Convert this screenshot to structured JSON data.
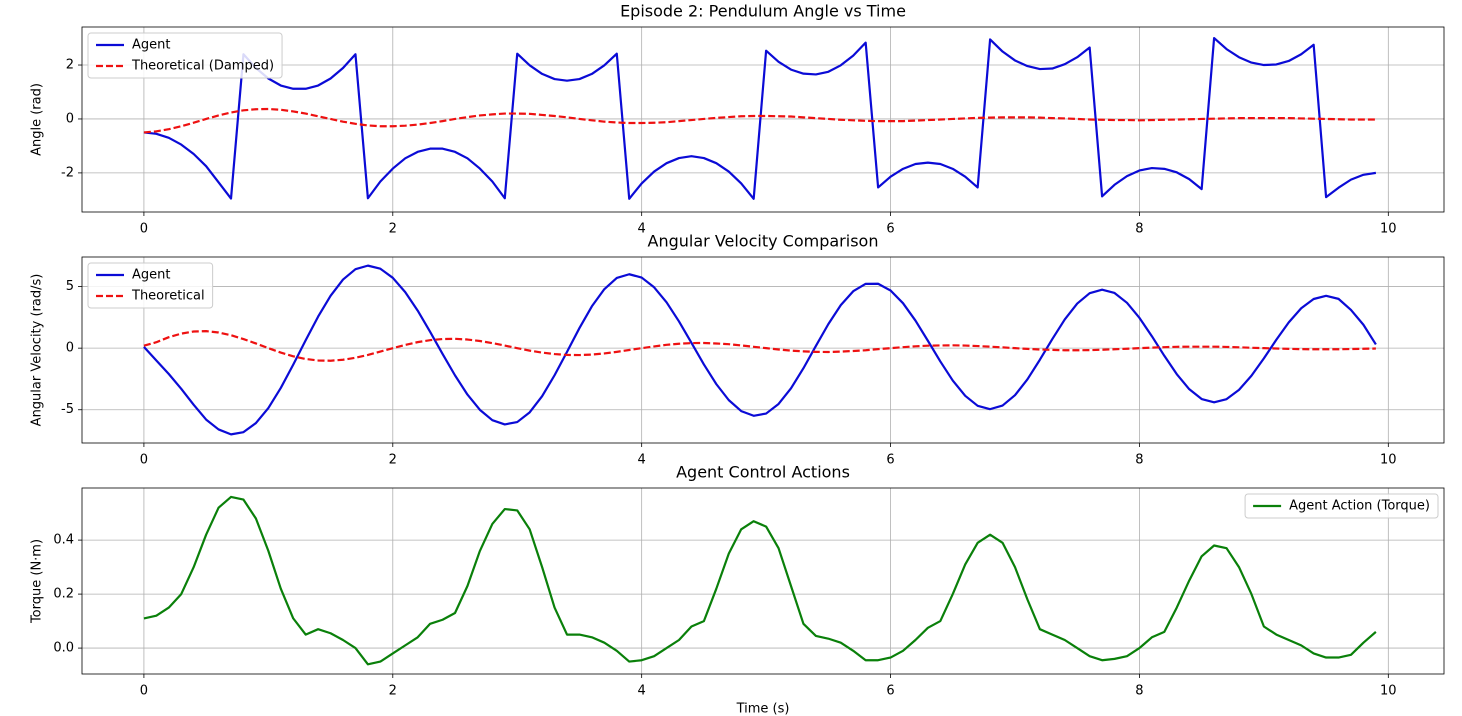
{
  "chart_data": [
    {
      "type": "line",
      "title": "Episode 2: Pendulum Angle vs Time",
      "y_label": "Angle (rad)",
      "x": [
        0,
        0.1,
        0.2,
        0.3,
        0.4,
        0.5,
        0.6,
        0.7,
        0.8,
        0.9,
        1,
        1.1,
        1.2,
        1.3,
        1.4,
        1.5,
        1.6,
        1.7,
        1.8,
        1.9,
        2,
        2.1,
        2.2,
        2.3,
        2.4,
        2.5,
        2.6,
        2.7,
        2.8,
        2.9,
        3,
        3.1,
        3.2,
        3.3,
        3.4,
        3.5,
        3.6,
        3.7,
        3.8,
        3.9,
        4,
        4.1,
        4.2,
        4.3,
        4.4,
        4.5,
        4.6,
        4.7,
        4.8,
        4.9,
        5,
        5.1,
        5.2,
        5.3,
        5.4,
        5.5,
        5.6,
        5.7,
        5.8,
        5.9,
        6,
        6.1,
        6.2,
        6.3,
        6.4,
        6.5,
        6.6,
        6.7,
        6.8,
        6.9,
        7,
        7.1,
        7.2,
        7.3,
        7.4,
        7.5,
        7.6,
        7.7,
        7.8,
        7.9,
        8,
        8.1,
        8.2,
        8.3,
        8.4,
        8.5,
        8.6,
        8.7,
        8.8,
        8.9,
        9,
        9.1,
        9.2,
        9.3,
        9.4,
        9.5,
        9.6,
        9.7,
        9.8,
        9.9
      ],
      "series": [
        {
          "name": "Agent",
          "color": "#0b0bd6",
          "linestyle": "solid",
          "values": [
            -0.5,
            -0.55,
            -0.7,
            -0.95,
            -1.3,
            -1.75,
            -2.35,
            -2.95,
            2.4,
            1.89,
            1.5,
            1.24,
            1.12,
            1.12,
            1.24,
            1.5,
            1.89,
            2.4,
            -2.94,
            -2.32,
            -1.84,
            -1.46,
            -1.22,
            -1.1,
            -1.1,
            -1.22,
            -1.46,
            -1.84,
            -2.32,
            -2.94,
            2.42,
            1.99,
            1.67,
            1.48,
            1.42,
            1.48,
            1.67,
            1.99,
            2.42,
            -2.96,
            -2.39,
            -1.95,
            -1.64,
            -1.45,
            -1.38,
            -1.45,
            -1.64,
            -1.95,
            -2.39,
            -2.96,
            2.53,
            2.12,
            1.83,
            1.68,
            1.65,
            1.75,
            1.99,
            2.35,
            2.83,
            -2.54,
            -2.14,
            -1.85,
            -1.67,
            -1.62,
            -1.67,
            -1.85,
            -2.14,
            -2.54,
            2.95,
            2.5,
            2.17,
            1.96,
            1.85,
            1.87,
            2.03,
            2.29,
            2.65,
            -2.87,
            -2.44,
            -2.12,
            -1.91,
            -1.82,
            -1.85,
            -1.98,
            -2.23,
            -2.6,
            3.0,
            2.59,
            2.29,
            2.09,
            2.0,
            2.02,
            2.15,
            2.4,
            2.75,
            -2.9,
            -2.55,
            -2.25,
            -2.07,
            -2.0
          ]
        },
        {
          "name": "Theoretical (Damped)",
          "color": "#ee1111",
          "linestyle": "dashed",
          "values": [
            -0.5,
            -0.46,
            -0.38,
            -0.27,
            -0.14,
            0,
            0.13,
            0.24,
            0.32,
            0.36,
            0.37,
            0.34,
            0.28,
            0.2,
            0.1,
            0,
            -0.1,
            -0.18,
            -0.24,
            -0.27,
            -0.27,
            -0.25,
            -0.21,
            -0.15,
            -0.08,
            0,
            0.07,
            0.13,
            0.17,
            0.2,
            0.2,
            0.19,
            0.15,
            0.11,
            0.06,
            0,
            -0.05,
            -0.1,
            -0.13,
            -0.15,
            -0.15,
            -0.14,
            -0.12,
            -0.08,
            -0.04,
            0,
            0.04,
            0.07,
            0.1,
            0.11,
            0.11,
            0.1,
            0.09,
            0.06,
            0.03,
            0,
            -0.03,
            -0.05,
            -0.07,
            -0.08,
            -0.08,
            -0.08,
            -0.06,
            -0.04,
            -0.02,
            0,
            0.02,
            0.04,
            0.05,
            0.06,
            0.06,
            0.06,
            0.05,
            0.03,
            0.02,
            0,
            -0.02,
            -0.03,
            -0.04,
            -0.04,
            -0.05,
            -0.04,
            -0.03,
            -0.02,
            -0.01,
            0,
            0.01,
            0.02,
            0.03,
            0.03,
            0.03,
            0.03,
            0.03,
            0.02,
            0.01,
            0,
            -0.01,
            -0.02,
            -0.02,
            -0.02
          ]
        }
      ],
      "xlim": [
        -0.4975,
        10.4475
      ],
      "xticks": [
        0,
        2,
        4,
        6,
        8,
        10
      ],
      "ylim": [
        -3.45,
        3.41
      ],
      "yticks": [
        -2,
        0,
        2
      ],
      "grid": true,
      "legend": "upper left"
    },
    {
      "type": "line",
      "title": "Angular Velocity Comparison",
      "y_label": "Angular Velocity (rad/s)",
      "x": [
        0,
        0.1,
        0.2,
        0.3,
        0.4,
        0.5,
        0.6,
        0.7,
        0.8,
        0.9,
        1,
        1.1,
        1.2,
        1.3,
        1.4,
        1.5,
        1.6,
        1.7,
        1.8,
        1.9,
        2,
        2.1,
        2.2,
        2.3,
        2.4,
        2.5,
        2.6,
        2.7,
        2.8,
        2.9,
        3,
        3.1,
        3.2,
        3.3,
        3.4,
        3.5,
        3.6,
        3.7,
        3.8,
        3.9,
        4,
        4.1,
        4.2,
        4.3,
        4.4,
        4.5,
        4.6,
        4.7,
        4.8,
        4.9,
        5,
        5.1,
        5.2,
        5.3,
        5.4,
        5.5,
        5.6,
        5.7,
        5.8,
        5.9,
        6,
        6.1,
        6.2,
        6.3,
        6.4,
        6.5,
        6.6,
        6.7,
        6.8,
        6.9,
        7,
        7.1,
        7.2,
        7.3,
        7.4,
        7.5,
        7.6,
        7.7,
        7.8,
        7.9,
        8,
        8.1,
        8.2,
        8.3,
        8.4,
        8.5,
        8.6,
        8.7,
        8.8,
        8.9,
        9,
        9.1,
        9.2,
        9.3,
        9.4,
        9.5,
        9.6,
        9.7,
        9.8,
        9.9
      ],
      "series": [
        {
          "name": "Agent",
          "color": "#0b0bd6",
          "linestyle": "solid",
          "values": [
            0.1,
            -1.0,
            -2.1,
            -3.3,
            -4.6,
            -5.8,
            -6.6,
            -7.0,
            -6.82,
            -6.08,
            -4.86,
            -3.23,
            -1.34,
            0.64,
            2.56,
            4.25,
            5.57,
            6.41,
            6.7,
            6.45,
            5.71,
            4.55,
            3.05,
            1.33,
            -0.47,
            -2.21,
            -3.77,
            -5.01,
            -5.85,
            -6.19,
            -6.0,
            -5.21,
            -3.9,
            -2.2,
            -0.3,
            1.63,
            3.4,
            4.79,
            5.7,
            6.0,
            5.73,
            4.94,
            3.72,
            2.17,
            0.43,
            -1.32,
            -2.92,
            -4.22,
            -5.11,
            -5.49,
            -5.31,
            -4.53,
            -3.26,
            -1.63,
            0.18,
            1.95,
            3.49,
            4.62,
            5.22,
            5.23,
            4.68,
            3.65,
            2.24,
            0.6,
            -1.08,
            -2.63,
            -3.87,
            -4.68,
            -4.95,
            -4.66,
            -3.82,
            -2.53,
            -0.94,
            0.74,
            2.33,
            3.62,
            4.46,
            4.75,
            4.48,
            3.68,
            2.46,
            0.97,
            -0.62,
            -2.11,
            -3.33,
            -4.13,
            -4.4,
            -4.14,
            -3.39,
            -2.24,
            -0.83,
            0.68,
            2.09,
            3.24,
            3.99,
            4.25,
            4.0,
            3.1,
            1.9,
            0.3
          ]
        },
        {
          "name": "Theoretical",
          "color": "#ee1111",
          "linestyle": "dashed",
          "values": [
            0.2,
            0.48,
            0.89,
            1.18,
            1.35,
            1.38,
            1.27,
            1.05,
            0.74,
            0.38,
            0,
            -0.36,
            -0.66,
            -0.88,
            -1.0,
            -1.02,
            -0.94,
            -0.78,
            -0.55,
            -0.28,
            0,
            0.26,
            0.49,
            0.65,
            0.74,
            0.76,
            0.7,
            0.58,
            0.41,
            0.21,
            0,
            -0.2,
            -0.36,
            -0.48,
            -0.55,
            -0.56,
            -0.52,
            -0.43,
            -0.3,
            -0.15,
            0,
            0.14,
            0.27,
            0.36,
            0.41,
            0.42,
            0.38,
            0.32,
            0.22,
            0.11,
            0,
            -0.11,
            -0.2,
            -0.26,
            -0.3,
            -0.31,
            -0.28,
            -0.23,
            -0.17,
            -0.08,
            0,
            0.08,
            0.15,
            0.2,
            0.22,
            0.23,
            0.21,
            0.17,
            0.12,
            0.06,
            0,
            -0.06,
            -0.11,
            -0.14,
            -0.17,
            -0.17,
            -0.16,
            -0.13,
            -0.09,
            -0.05,
            0,
            0.04,
            0.08,
            0.11,
            0.12,
            0.12,
            0.12,
            0.1,
            0.07,
            0.03,
            0,
            -0.03,
            -0.06,
            -0.08,
            -0.09,
            -0.09,
            -0.09,
            -0.07,
            -0.05,
            -0.03
          ]
        }
      ],
      "xlim": [
        -0.4975,
        10.4475
      ],
      "xticks": [
        0,
        2,
        4,
        6,
        8,
        10
      ],
      "ylim": [
        -7.7,
        7.4
      ],
      "yticks": [
        -5,
        0,
        5
      ],
      "grid": true,
      "legend": "upper left"
    },
    {
      "type": "line",
      "title": "Agent Control Actions",
      "y_label": "Torque (N·m)",
      "x_label": "Time (s)",
      "x": [
        0,
        0.1,
        0.2,
        0.3,
        0.4,
        0.5,
        0.6,
        0.7,
        0.8,
        0.9,
        1,
        1.1,
        1.2,
        1.3,
        1.4,
        1.5,
        1.6,
        1.7,
        1.8,
        1.9,
        2,
        2.1,
        2.2,
        2.3,
        2.4,
        2.5,
        2.6,
        2.7,
        2.8,
        2.9,
        3,
        3.1,
        3.2,
        3.3,
        3.4,
        3.5,
        3.6,
        3.7,
        3.8,
        3.9,
        4,
        4.1,
        4.2,
        4.3,
        4.4,
        4.5,
        4.6,
        4.7,
        4.8,
        4.9,
        5,
        5.1,
        5.2,
        5.3,
        5.4,
        5.5,
        5.6,
        5.7,
        5.8,
        5.9,
        6,
        6.1,
        6.2,
        6.3,
        6.4,
        6.5,
        6.6,
        6.7,
        6.8,
        6.9,
        7,
        7.1,
        7.2,
        7.3,
        7.4,
        7.5,
        7.6,
        7.7,
        7.8,
        7.9,
        8,
        8.1,
        8.2,
        8.3,
        8.4,
        8.5,
        8.6,
        8.7,
        8.8,
        8.9,
        9,
        9.1,
        9.2,
        9.3,
        9.4,
        9.5,
        9.6,
        9.7,
        9.8,
        9.9
      ],
      "series": [
        {
          "name": "Agent Action (Torque)",
          "color": "#0a800a",
          "linestyle": "solid",
          "values": [
            0.11,
            0.12,
            0.15,
            0.2,
            0.3,
            0.42,
            0.52,
            0.56,
            0.55,
            0.48,
            0.36,
            0.22,
            0.11,
            0.05,
            0.07,
            0.055,
            0.03,
            0.0,
            -0.06,
            -0.05,
            -0.02,
            0.01,
            0.04,
            0.09,
            0.105,
            0.13,
            0.23,
            0.36,
            0.46,
            0.515,
            0.51,
            0.44,
            0.3,
            0.15,
            0.05,
            0.05,
            0.04,
            0.02,
            -0.01,
            -0.05,
            -0.045,
            -0.03,
            0.0,
            0.03,
            0.08,
            0.1,
            0.22,
            0.35,
            0.44,
            0.47,
            0.45,
            0.37,
            0.23,
            0.09,
            0.045,
            0.035,
            0.02,
            -0.01,
            -0.045,
            -0.045,
            -0.035,
            -0.01,
            0.03,
            0.075,
            0.1,
            0.2,
            0.31,
            0.39,
            0.42,
            0.39,
            0.3,
            0.18,
            0.07,
            0.05,
            0.03,
            0.0,
            -0.03,
            -0.045,
            -0.04,
            -0.03,
            0.0,
            0.04,
            0.06,
            0.15,
            0.25,
            0.34,
            0.38,
            0.37,
            0.3,
            0.2,
            0.08,
            0.05,
            0.03,
            0.01,
            -0.02,
            -0.035,
            -0.035,
            -0.025,
            0.02,
            0.06
          ]
        }
      ],
      "xlim": [
        -0.4975,
        10.4475
      ],
      "xticks": [
        0,
        2,
        4,
        6,
        8,
        10
      ],
      "ylim": [
        -0.096,
        0.593
      ],
      "yticks": [
        {
          "value": 0,
          "label": "0.0"
        },
        0.2,
        0.4
      ],
      "grid": true,
      "legend": "upper right"
    }
  ]
}
